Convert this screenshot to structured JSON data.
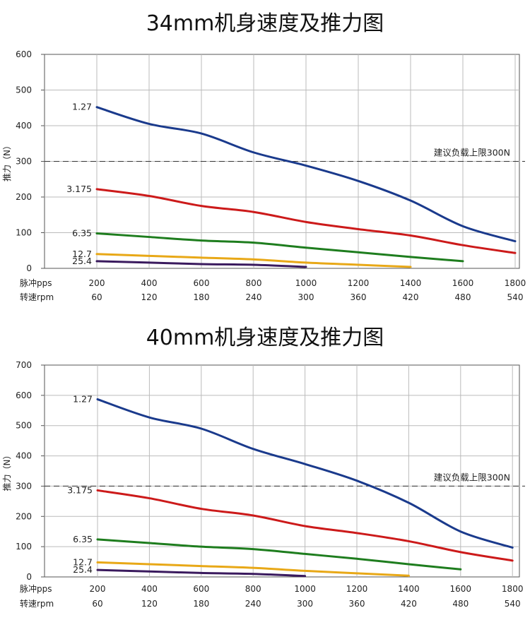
{
  "charts": [
    {
      "title": "34mm机身速度及推力图",
      "ylabel": "推力（N）",
      "xlabel_pps": "脉冲pps",
      "xlabel_rpm": "转速rpm",
      "limit_label": "建议负载上限300N",
      "yticks": [
        "0",
        "100",
        "200",
        "300",
        "400",
        "500",
        "600"
      ],
      "xticks_pps": [
        "200",
        "400",
        "600",
        "800",
        "1000",
        "1200",
        "1400",
        "1600",
        "1800"
      ],
      "xticks_rpm": [
        "60",
        "120",
        "180",
        "240",
        "300",
        "360",
        "420",
        "480",
        "540"
      ]
    },
    {
      "title": "40mm机身速度及推力图",
      "ylabel": "推力（N）",
      "xlabel_pps": "脉冲pps",
      "xlabel_rpm": "转速rpm",
      "limit_label": "建议负载上限300N",
      "yticks": [
        "0",
        "100",
        "200",
        "300",
        "400",
        "500",
        "600",
        "700"
      ],
      "xticks_pps": [
        "200",
        "400",
        "600",
        "800",
        "1000",
        "1200",
        "1400",
        "1600",
        "1800"
      ],
      "xticks_rpm": [
        "60",
        "120",
        "180",
        "240",
        "300",
        "360",
        "420",
        "480",
        "540"
      ]
    }
  ],
  "chart_data": [
    {
      "type": "line",
      "title": "34mm机身速度及推力图",
      "xlabel": "脉冲pps / 转速rpm",
      "ylabel": "推力（N）",
      "xlim": [
        0,
        1800
      ],
      "ylim": [
        0,
        600
      ],
      "grid": true,
      "reference_line": {
        "y": 300,
        "label": "建议负载上限300N",
        "style": "dashed"
      },
      "series": [
        {
          "name": "1.27",
          "color": "#1a3a8c",
          "x": [
            200,
            400,
            600,
            800,
            1000,
            1200,
            1400,
            1600,
            1800
          ],
          "y": [
            452,
            405,
            378,
            325,
            288,
            245,
            190,
            118,
            76
          ]
        },
        {
          "name": "3.175",
          "color": "#cc1a1a",
          "x": [
            200,
            400,
            600,
            800,
            1000,
            1200,
            1400,
            1600,
            1800
          ],
          "y": [
            222,
            203,
            175,
            158,
            130,
            110,
            92,
            65,
            43
          ]
        },
        {
          "name": "6.35",
          "color": "#1e7d1e",
          "x": [
            200,
            400,
            600,
            800,
            1000,
            1200,
            1400,
            1600
          ],
          "y": [
            98,
            88,
            78,
            72,
            58,
            45,
            32,
            20
          ]
        },
        {
          "name": "12.7",
          "color": "#e8a817",
          "x": [
            200,
            400,
            600,
            800,
            1000,
            1200,
            1400
          ],
          "y": [
            40,
            35,
            30,
            25,
            16,
            10,
            4
          ]
        },
        {
          "name": "25.4",
          "color": "#3a1a5e",
          "x": [
            200,
            400,
            600,
            800,
            1000
          ],
          "y": [
            20,
            16,
            12,
            10,
            4
          ]
        }
      ]
    },
    {
      "type": "line",
      "title": "40mm机身速度及推力图",
      "xlabel": "脉冲pps / 转速rpm",
      "ylabel": "推力（N）",
      "xlim": [
        0,
        1800
      ],
      "ylim": [
        0,
        700
      ],
      "grid": true,
      "reference_line": {
        "y": 300,
        "label": "建议负载上限300N",
        "style": "dashed"
      },
      "series": [
        {
          "name": "1.27",
          "color": "#1a3a8c",
          "x": [
            200,
            400,
            600,
            800,
            1000,
            1200,
            1400,
            1600,
            1800
          ],
          "y": [
            587,
            527,
            490,
            423,
            373,
            318,
            245,
            150,
            97
          ]
        },
        {
          "name": "3.175",
          "color": "#cc1a1a",
          "x": [
            200,
            400,
            600,
            800,
            1000,
            1200,
            1400,
            1600,
            1800
          ],
          "y": [
            286,
            260,
            225,
            203,
            168,
            145,
            118,
            82,
            54
          ]
        },
        {
          "name": "6.35",
          "color": "#1e7d1e",
          "x": [
            200,
            400,
            600,
            800,
            1000,
            1200,
            1400,
            1600
          ],
          "y": [
            124,
            112,
            100,
            92,
            76,
            60,
            42,
            25
          ]
        },
        {
          "name": "12.7",
          "color": "#e8a817",
          "x": [
            200,
            400,
            600,
            800,
            1000,
            1200,
            1400
          ],
          "y": [
            48,
            42,
            36,
            30,
            20,
            12,
            4
          ]
        },
        {
          "name": "25.4",
          "color": "#3a1a5e",
          "x": [
            200,
            400,
            600,
            800,
            1000
          ],
          "y": [
            23,
            18,
            13,
            10,
            3
          ]
        }
      ]
    }
  ]
}
